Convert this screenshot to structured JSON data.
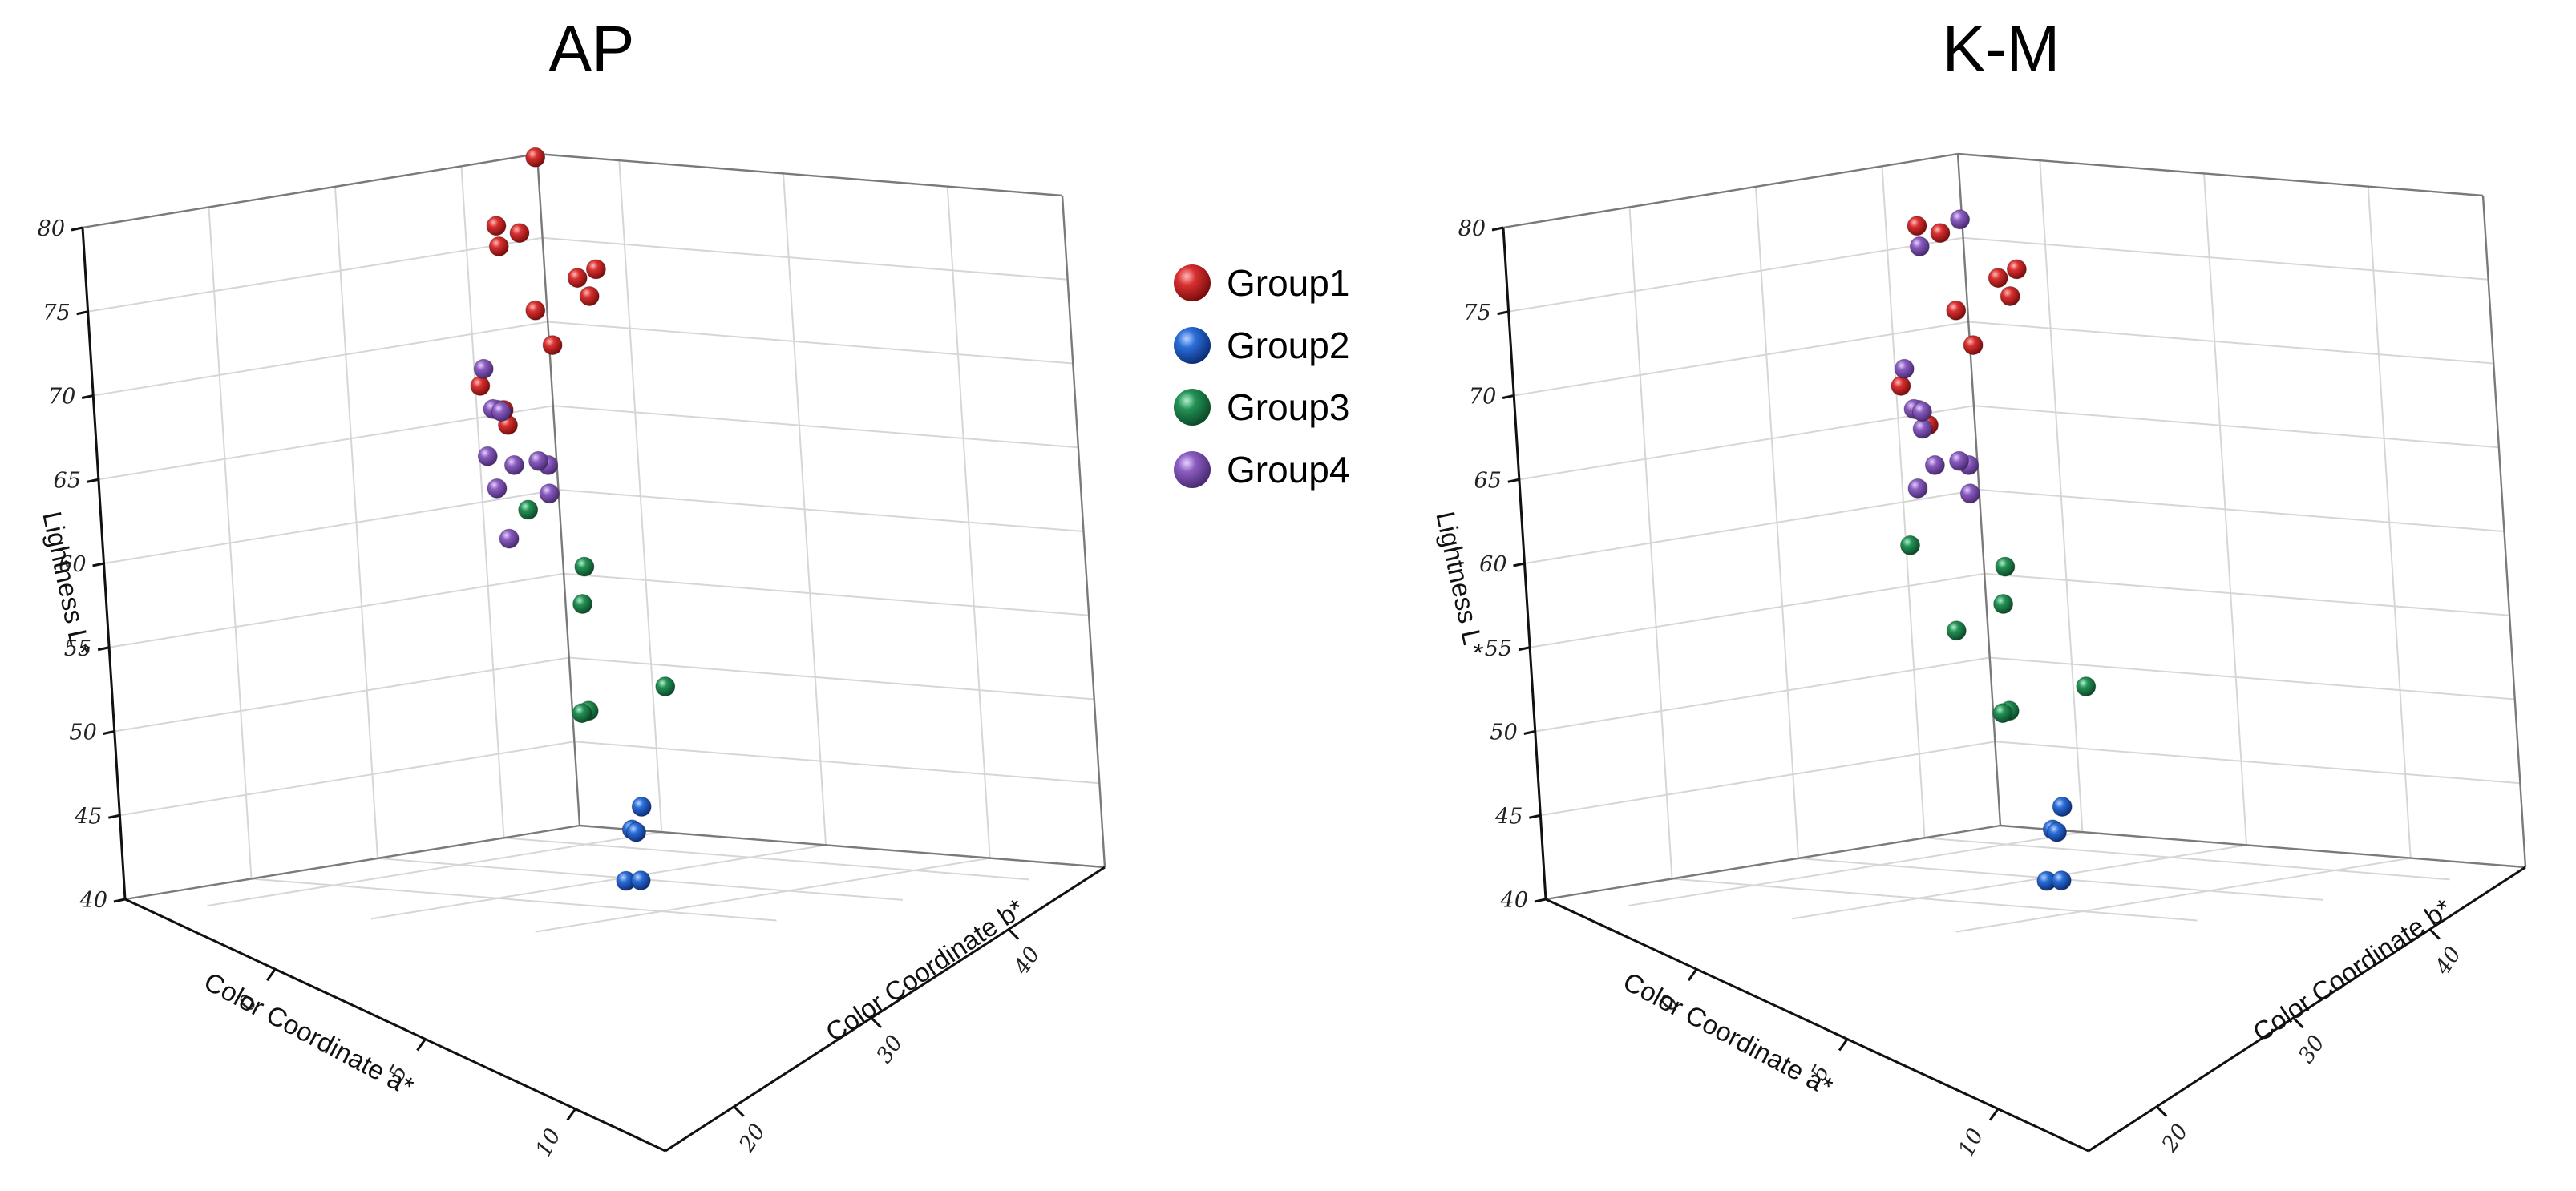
{
  "chart_data": [
    {
      "type": "scatter",
      "projection": "3d",
      "title": "AP",
      "xlabel": "Color Coordinate a*",
      "ylabel": "Color Coordinate b*",
      "zlabel": "Lightness L*",
      "xlim": [
        -5,
        13
      ],
      "ylim": [
        15,
        47
      ],
      "zlim": [
        40,
        80
      ],
      "xticks": [
        "0",
        "5",
        "10"
      ],
      "yticks": [
        "20",
        "30",
        "40"
      ],
      "zticks": [
        "40",
        "45",
        "50",
        "55",
        "60",
        "65",
        "70",
        "75",
        "80"
      ],
      "series": [
        {
          "name": "Group1",
          "color": "#b51f1f",
          "points": [
            [
              -1.3,
              40.5,
              78.6
            ],
            [
              -1.6,
              39.8,
              78.1
            ],
            [
              -0.6,
              38.9,
              76.7
            ],
            [
              0.2,
              35.2,
              73.3
            ],
            [
              -4.4,
              37.8,
              72.2
            ],
            [
              2.0,
              30.8,
              79.2
            ],
            [
              3.2,
              29.6,
              74.2
            ],
            [
              4.5,
              25.5,
              78.6
            ],
            [
              5.0,
              24.8,
              77.2
            ],
            [
              3.5,
              27.0,
              67.1
            ],
            [
              5.1,
              24.3,
              67.4
            ],
            [
              9.4,
              20.5,
              81.1
            ]
          ]
        },
        {
          "name": "Group2",
          "color": "#1f5bb5",
          "points": [
            [
              -2.0,
              42.3,
              46.9
            ],
            [
              -2.3,
              42.1,
              45.6
            ],
            [
              -2.4,
              42.5,
              45.5
            ],
            [
              -2.6,
              42.0,
              42.6
            ],
            [
              1.5,
              36.5,
              41.2
            ]
          ]
        },
        {
          "name": "Group3",
          "color": "#1e7a46",
          "points": [
            [
              -2.3,
              40.2,
              61.1
            ],
            [
              -2.4,
              40.1,
              58.9
            ],
            [
              -0.9,
              42.5,
              53.8
            ],
            [
              -2.3,
              39.9,
              52.5
            ],
            [
              -2.5,
              39.8,
              52.4
            ],
            [
              8.5,
              20.1,
              60.3
            ]
          ]
        },
        {
          "name": "Group4",
          "color": "#7a4fa8",
          "points": [
            [
              2.1,
              31.5,
              65.4
            ],
            [
              3.2,
              29.2,
              65.2
            ],
            [
              2.4,
              31.0,
              63.6
            ],
            [
              4.2,
              25.0,
              63.0
            ],
            [
              6.6,
              20.8,
              64.0
            ],
            [
              5.7,
              23.2,
              59.5
            ],
            [
              8.0,
              18.7,
              68.7
            ],
            [
              7.5,
              20.2,
              66.5
            ],
            [
              8.4,
              18.5,
              66.2
            ],
            [
              10.0,
              16.5,
              65.5
            ],
            [
              9.6,
              17.7,
              62.5
            ]
          ]
        }
      ],
      "legend": "right"
    },
    {
      "type": "scatter",
      "projection": "3d",
      "title": "K-M",
      "xlabel": "Color Coordinate a*",
      "ylabel": "Color Coordinate b*",
      "zlabel": "Lightness L*",
      "xlim": [
        -5,
        13
      ],
      "ylim": [
        15,
        47
      ],
      "zlim": [
        40,
        80
      ],
      "xticks": [
        "0",
        "5",
        "10"
      ],
      "yticks": [
        "20",
        "30",
        "40"
      ],
      "zticks": [
        "40",
        "45",
        "50",
        "55",
        "60",
        "65",
        "70",
        "75",
        "80"
      ],
      "series": [
        {
          "name": "Group1",
          "color": "#b51f1f",
          "points": [
            [
              -1.3,
              40.5,
              78.6
            ],
            [
              -1.6,
              39.8,
              78.1
            ],
            [
              -0.6,
              38.9,
              76.7
            ],
            [
              0.2,
              35.2,
              73.3
            ],
            [
              -4.4,
              37.8,
              72.2
            ],
            [
              2.0,
              30.8,
              79.2
            ],
            [
              3.2,
              29.6,
              74.2
            ],
            [
              4.5,
              25.5,
              78.6
            ],
            [
              3.5,
              27.0,
              67.1
            ]
          ]
        },
        {
          "name": "Group2",
          "color": "#1f5bb5",
          "points": [
            [
              -2.0,
              42.3,
              46.9
            ],
            [
              -2.3,
              42.1,
              45.6
            ],
            [
              -2.4,
              42.5,
              45.5
            ],
            [
              -2.6,
              42.0,
              42.6
            ],
            [
              1.5,
              36.5,
              41.2
            ]
          ]
        },
        {
          "name": "Group3",
          "color": "#1e7a46",
          "points": [
            [
              -2.3,
              40.2,
              61.1
            ],
            [
              -2.4,
              40.1,
              58.9
            ],
            [
              -0.9,
              42.5,
              53.8
            ],
            [
              -2.3,
              39.9,
              52.5
            ],
            [
              -2.5,
              39.8,
              52.4
            ],
            [
              6.0,
              21.5,
              58.9
            ],
            [
              8.5,
              20.1,
              53.1
            ]
          ]
        },
        {
          "name": "Group4",
          "color": "#7a4fa8",
          "points": [
            [
              5.0,
              24.8,
              77.2
            ],
            [
              9.4,
              20.5,
              77.4
            ],
            [
              3.9,
              26.0,
              66.7
            ],
            [
              2.1,
              31.5,
              65.4
            ],
            [
              3.2,
              29.2,
              65.2
            ],
            [
              2.4,
              31.0,
              63.6
            ],
            [
              4.2,
              25.0,
              63.0
            ],
            [
              8.0,
              18.7,
              68.7
            ],
            [
              7.5,
              20.2,
              66.5
            ],
            [
              8.4,
              18.5,
              66.2
            ],
            [
              10.0,
              16.5,
              65.5
            ],
            [
              9.6,
              17.7,
              62.5
            ]
          ]
        }
      ],
      "legend": "none"
    }
  ]
}
